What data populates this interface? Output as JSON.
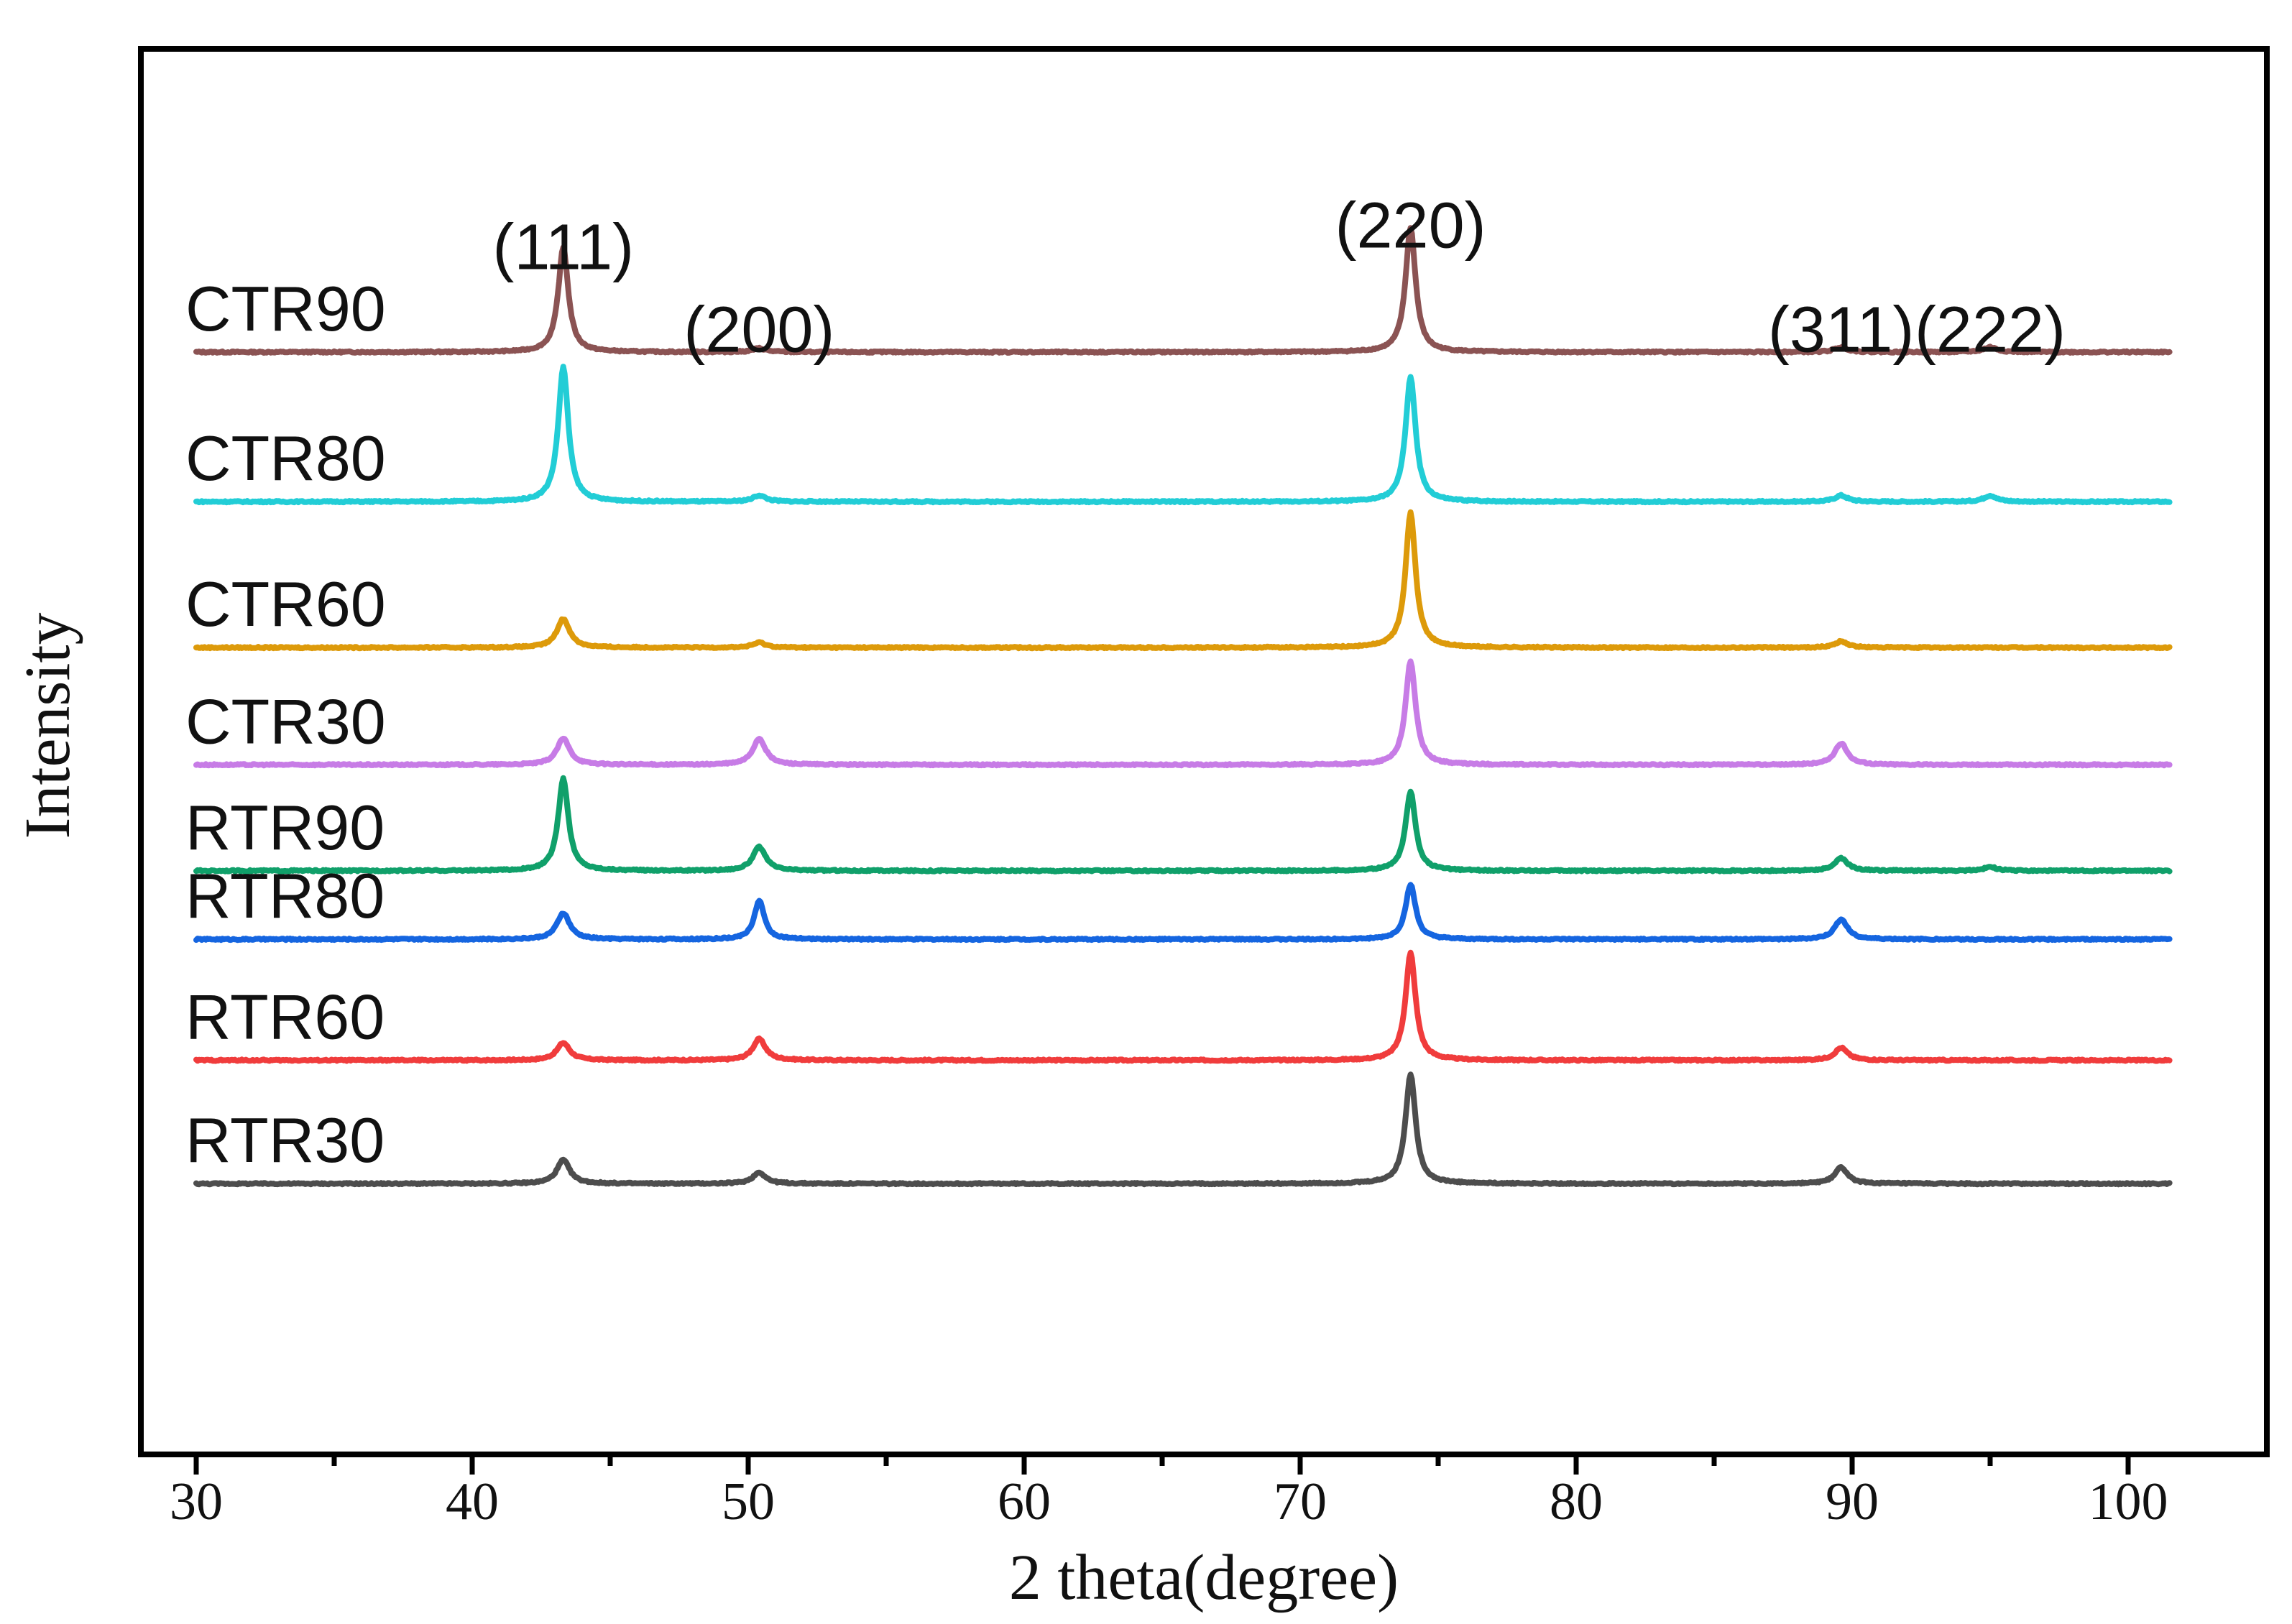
{
  "chart_data": {
    "type": "line",
    "title": "",
    "xlabel": "2 theta(degree)",
    "ylabel": "Intensity",
    "xlim": [
      28.5,
      103
    ],
    "x_ticks": [
      30,
      40,
      50,
      60,
      70,
      80,
      90,
      100
    ],
    "x_tick_labels": [
      "30",
      "40",
      "50",
      "60",
      "70",
      "80",
      "90",
      "100"
    ],
    "x_minor_ticks": [
      35,
      45,
      55,
      65,
      75,
      85,
      95
    ],
    "x_range": [
      30,
      101.5
    ],
    "y_ticks_shown": false,
    "stacked_offsets": true,
    "peak_labels": [
      {
        "label": "(111)",
        "x": 43.3
      },
      {
        "label": "(200)",
        "x": 50.4
      },
      {
        "label": "(220)",
        "x": 74.0
      },
      {
        "label": "(311)",
        "x": 89.6
      },
      {
        "label": "(222)",
        "x": 95.0
      }
    ],
    "series": [
      {
        "name": "CTR90",
        "color": "#8B5353",
        "baseline": 0.0,
        "peaks": [
          {
            "x": 43.3,
            "h": 0.84
          },
          {
            "x": 50.4,
            "h": 0.03
          },
          {
            "x": 74.0,
            "h": 1.0
          },
          {
            "x": 89.6,
            "h": 0.04
          },
          {
            "x": 95.0,
            "h": 0.04
          }
        ]
      },
      {
        "name": "CTR80",
        "color": "#22CDD6",
        "baseline": -1.2,
        "peaks": [
          {
            "x": 43.3,
            "h": 1.08
          },
          {
            "x": 50.4,
            "h": 0.05
          },
          {
            "x": 74.0,
            "h": 1.0
          },
          {
            "x": 89.6,
            "h": 0.05
          },
          {
            "x": 95.0,
            "h": 0.05
          }
        ]
      },
      {
        "name": "CTR60",
        "color": "#DD9A0A",
        "baseline": -2.37,
        "peaks": [
          {
            "x": 43.3,
            "h": 0.23
          },
          {
            "x": 50.4,
            "h": 0.04
          },
          {
            "x": 74.0,
            "h": 1.08
          },
          {
            "x": 89.6,
            "h": 0.05
          }
        ]
      },
      {
        "name": "CTR30",
        "color": "#C77CE6",
        "baseline": -3.31,
        "peaks": [
          {
            "x": 43.3,
            "h": 0.21
          },
          {
            "x": 50.4,
            "h": 0.21
          },
          {
            "x": 74.0,
            "h": 0.83
          },
          {
            "x": 89.6,
            "h": 0.17
          }
        ]
      },
      {
        "name": "RTR90",
        "color": "#10A06A",
        "baseline": -4.16,
        "peaks": [
          {
            "x": 43.3,
            "h": 0.74
          },
          {
            "x": 50.4,
            "h": 0.19
          },
          {
            "x": 74.0,
            "h": 0.63
          },
          {
            "x": 89.6,
            "h": 0.1
          },
          {
            "x": 95.0,
            "h": 0.03
          }
        ]
      },
      {
        "name": "RTR80",
        "color": "#1565E0",
        "baseline": -4.71,
        "peaks": [
          {
            "x": 43.3,
            "h": 0.21
          },
          {
            "x": 50.4,
            "h": 0.31
          },
          {
            "x": 74.0,
            "h": 0.44
          },
          {
            "x": 89.6,
            "h": 0.16
          }
        ]
      },
      {
        "name": "RTR60",
        "color": "#F03C3C",
        "baseline": -5.68,
        "peaks": [
          {
            "x": 43.3,
            "h": 0.14
          },
          {
            "x": 50.4,
            "h": 0.17
          },
          {
            "x": 74.0,
            "h": 0.86
          },
          {
            "x": 89.6,
            "h": 0.1
          }
        ]
      },
      {
        "name": "RTR30",
        "color": "#4D4D4D",
        "baseline": -6.67,
        "peaks": [
          {
            "x": 43.3,
            "h": 0.19
          },
          {
            "x": 50.4,
            "h": 0.09
          },
          {
            "x": 74.0,
            "h": 0.88
          },
          {
            "x": 89.6,
            "h": 0.13
          }
        ]
      }
    ]
  }
}
